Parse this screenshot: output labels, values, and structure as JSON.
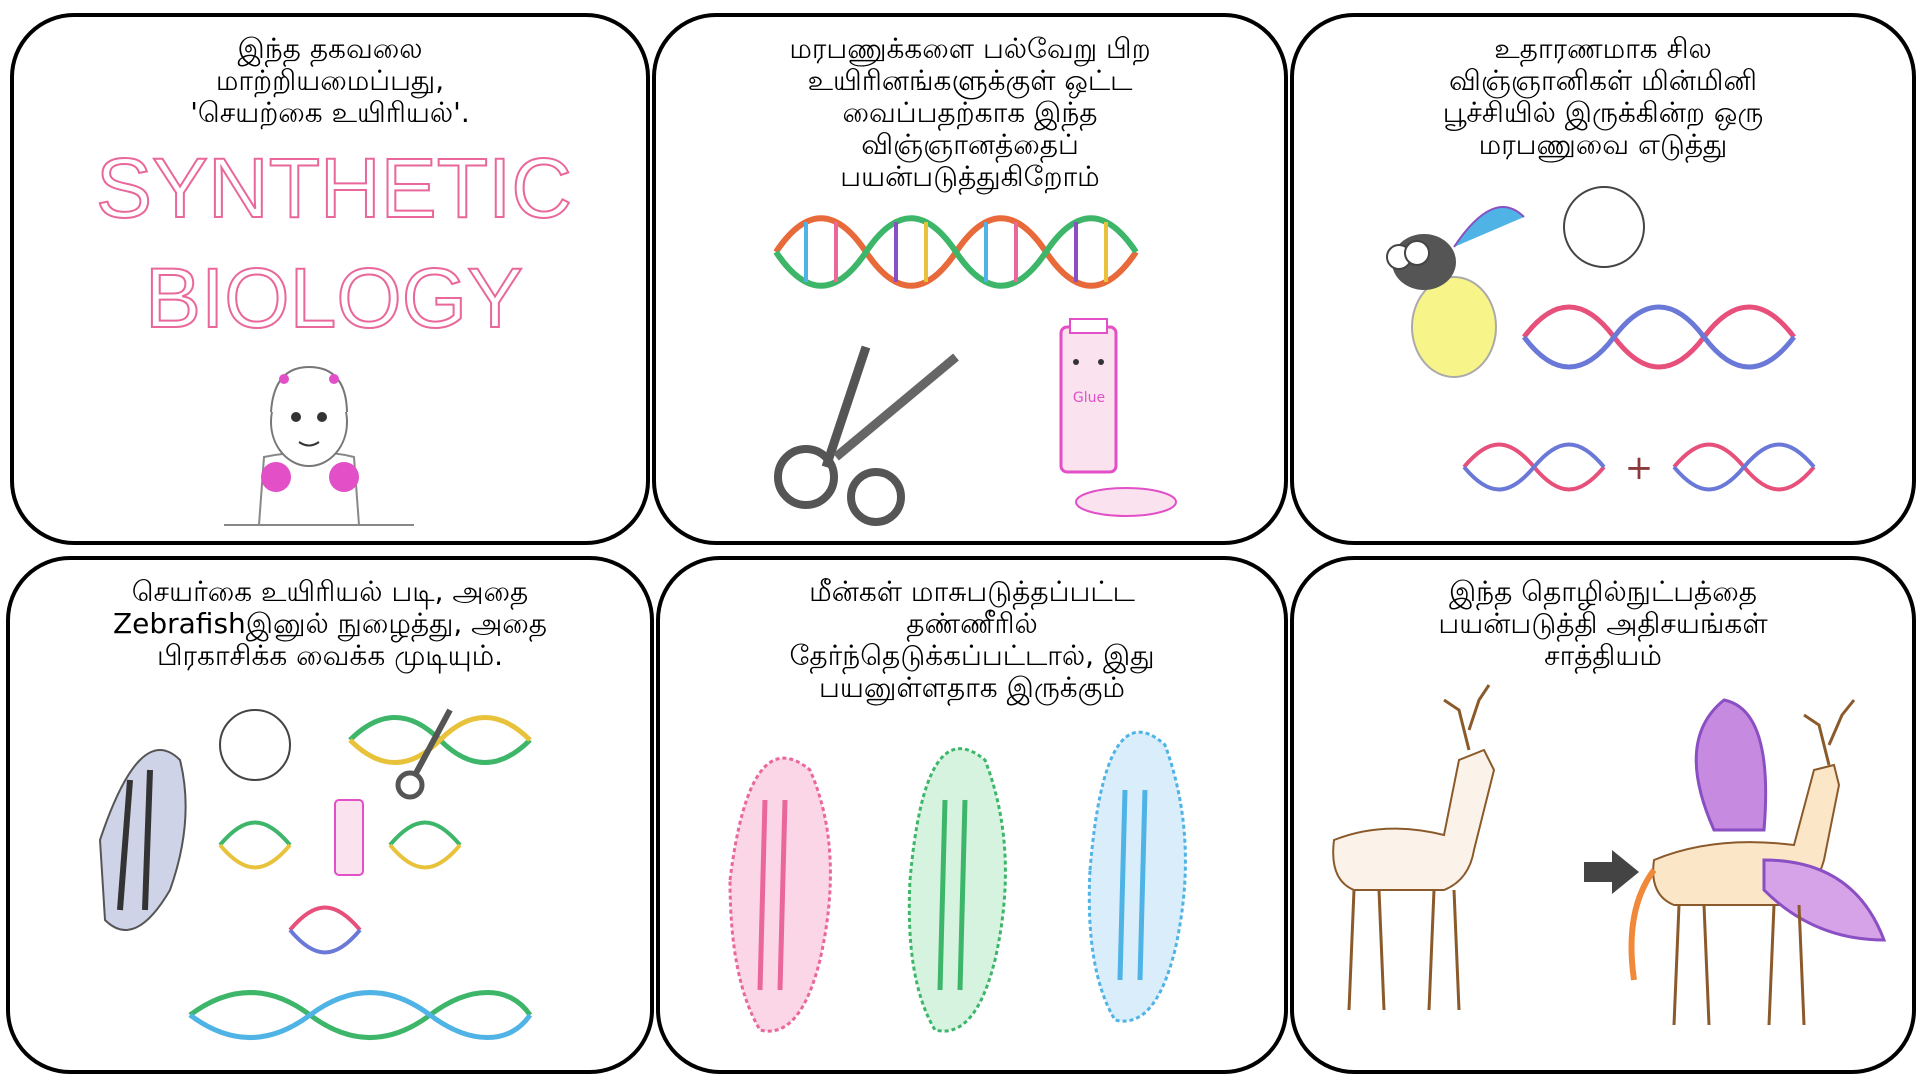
{
  "panels": [
    {
      "caption": [
        "இந்த தகவலை",
        "மாற்றியமைப்பது,",
        "'செயற்கை உயிரியல்'."
      ],
      "art_title": [
        "SYNTHETIC",
        "BIOLOGY"
      ]
    },
    {
      "caption": [
        "மரபணுக்களை பல்வேறு பிற",
        "உயிரினங்களுக்குள் ஒட்ட",
        "வைப்பதற்காக இந்த",
        "விஞ்ஞானத்தைப்",
        "பயன்படுத்துகிறோம்"
      ],
      "glue_label": "Glue"
    },
    {
      "caption": [
        "உதாரணமாக சில",
        "விஞ்ஞானிகள் மின்மினி",
        "பூச்சியில் இருக்கின்ற ஒரு",
        "மரபணுவை எடுத்து"
      ],
      "plus_sign": "+"
    },
    {
      "caption": [
        "செயர்கை உயிரியல் படி, அதை",
        "Zebrafishஇனுல் நுழைத்து, அதை",
        "பிரகாசிக்க வைக்க முடியும்."
      ]
    },
    {
      "caption": [
        "மீன்கள் மாசுபடுத்தப்பட்ட",
        "தண்ணீரில்",
        "தேர்ந்தெடுக்கப்பட்டால், இது",
        "பயனுள்ளதாக இருக்கும்"
      ]
    },
    {
      "caption": [
        "இந்த தொழில்நுட்பத்தை",
        "பயன்படுத்தி அதிசயங்கள்",
        "சாத்தியம்"
      ]
    }
  ],
  "colors": {
    "pink": "#e9679a",
    "green": "#3db66a",
    "blue": "#4fb3e6",
    "purple": "#8a4fc2",
    "dna_red": "#e6507a",
    "dna_blue": "#6a78d8"
  }
}
